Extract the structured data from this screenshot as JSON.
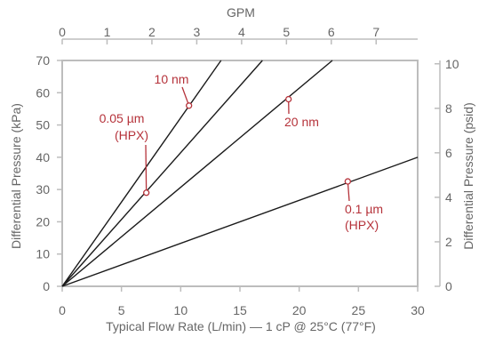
{
  "colors": {
    "frame": "#bdbdbd",
    "line": "#1a1a1a",
    "text": "#666666",
    "annotation": "#b5323a"
  },
  "chart_data": {
    "type": "line",
    "xlabel": "Typical Flow Rate (L/min) — 1 cP @ 25°C (77°F)",
    "ylabel": "Differential Pressure (kPa)",
    "top_axis_label": "GPM",
    "right_axis_label": "Differential Pressure (psid)",
    "xlim": [
      0,
      30
    ],
    "ylim": [
      0,
      70
    ],
    "top_xlim": [
      0,
      7.926
    ],
    "right_ylim": [
      0,
      10.15
    ],
    "x_ticks": [
      "0",
      "5",
      "10",
      "15",
      "20",
      "25",
      "30"
    ],
    "y_ticks": [
      "0",
      "10",
      "20",
      "30",
      "40",
      "50",
      "60",
      "70"
    ],
    "top_ticks": [
      "0",
      "1",
      "2",
      "3",
      "4",
      "5",
      "6",
      "7"
    ],
    "right_ticks": [
      "0",
      "2",
      "4",
      "6",
      "8",
      "10"
    ],
    "grid": false,
    "series": [
      {
        "x": [
          0,
          13.4
        ],
        "y": [
          0,
          70
        ]
      },
      {
        "x": [
          0,
          16.9
        ],
        "y": [
          0,
          70
        ]
      },
      {
        "x": [
          0,
          22.8
        ],
        "y": [
          0,
          70
        ]
      },
      {
        "x": [
          0,
          30
        ],
        "y": [
          0,
          40
        ]
      }
    ],
    "annotations": [
      {
        "text": "10 nm",
        "point": [
          10.7,
          56
        ]
      },
      {
        "text": "0.05 µm",
        "text2": "(HPX)",
        "point": [
          7.1,
          29
        ]
      },
      {
        "text": "20 nm",
        "point": [
          19.1,
          58
        ]
      },
      {
        "text": "0.1 µm",
        "text2": "(HPX)",
        "point": [
          24.1,
          32.5
        ]
      }
    ]
  }
}
